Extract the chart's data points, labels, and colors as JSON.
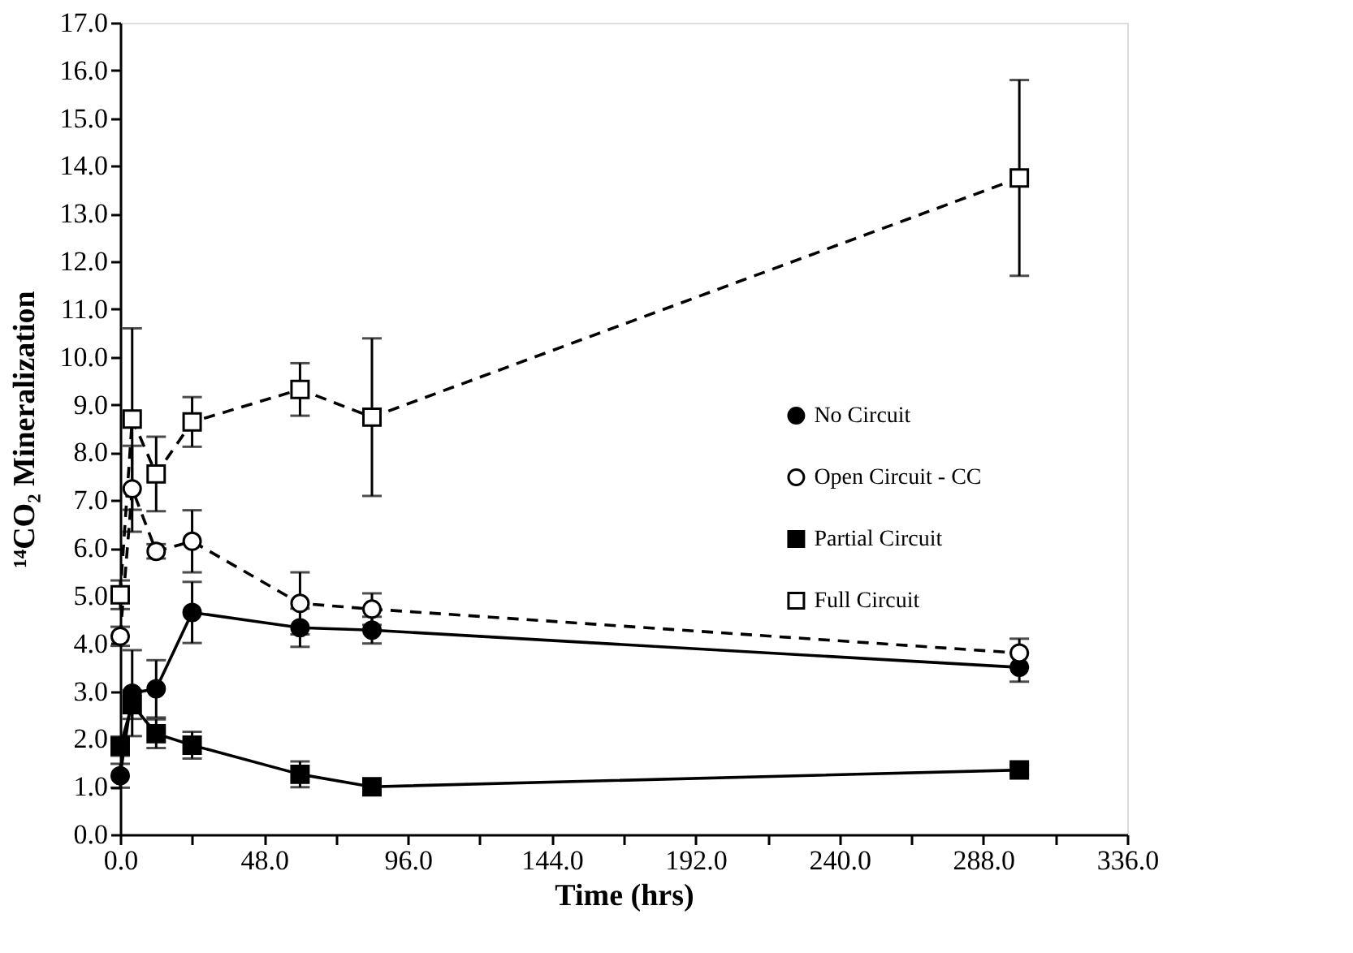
{
  "chart_data": {
    "type": "line",
    "xlabel": "Time (hrs)",
    "ylabel": "¹⁴CO₂ Mineralization",
    "xlim": [
      0,
      336
    ],
    "ylim": [
      0,
      17
    ],
    "xticks": [
      {
        "value": 0,
        "label": "0.0"
      },
      {
        "value": 24,
        "label": null
      },
      {
        "value": 48,
        "label": "48.0"
      },
      {
        "value": 72,
        "label": null
      },
      {
        "value": 96,
        "label": "96.0"
      },
      {
        "value": 120,
        "label": null
      },
      {
        "value": 144,
        "label": "144.0"
      },
      {
        "value": 168,
        "label": null
      },
      {
        "value": 192,
        "label": "192.0"
      },
      {
        "value": 216,
        "label": null
      },
      {
        "value": 240,
        "label": "240.0"
      },
      {
        "value": 264,
        "label": null
      },
      {
        "value": 288,
        "label": "288.0"
      },
      {
        "value": 312,
        "label": null
      },
      {
        "value": 336,
        "label": "336.0"
      }
    ],
    "yticks": [
      {
        "value": 0,
        "label": "0.0"
      },
      {
        "value": 1,
        "label": "1.0"
      },
      {
        "value": 2,
        "label": "2.0"
      },
      {
        "value": 3,
        "label": "3.0"
      },
      {
        "value": 4,
        "label": "4.0"
      },
      {
        "value": 5,
        "label": "5.0"
      },
      {
        "value": 6,
        "label": "6.0"
      },
      {
        "value": 7,
        "label": "7.0"
      },
      {
        "value": 8,
        "label": "8.0"
      },
      {
        "value": 9,
        "label": "9.0"
      },
      {
        "value": 10,
        "label": "10.0"
      },
      {
        "value": 11,
        "label": "11.0"
      },
      {
        "value": 12,
        "label": "12.0"
      },
      {
        "value": 13,
        "label": "13.0"
      },
      {
        "value": 14,
        "label": "14.0"
      },
      {
        "value": 15,
        "label": "15.0"
      },
      {
        "value": 16,
        "label": "16.0"
      },
      {
        "value": 17,
        "label": "17.0"
      }
    ],
    "x": [
      0,
      4,
      12,
      24,
      60,
      84,
      300
    ],
    "grid": false,
    "legend": "right",
    "series": [
      {
        "name": "No Circuit",
        "color": "#000000",
        "marker": "circle",
        "line_style": "solid",
        "values": [
          1.23,
          2.96,
          3.05,
          4.65,
          4.33,
          4.28,
          3.5
        ],
        "errors": [
          0.25,
          0.9,
          0.6,
          0.64,
          0.4,
          0.28,
          0.3
        ]
      },
      {
        "name": "Open Circuit - CC",
        "color": "#000000",
        "marker": "circle",
        "line_style": "dashed",
        "values": [
          4.15,
          7.24,
          5.93,
          6.14,
          4.84,
          4.72,
          3.8
        ],
        "errors": [
          0.2,
          0.9,
          0.15,
          0.65,
          0.65,
          0.33,
          0.3
        ]
      },
      {
        "name": "Partial Circuit",
        "color": "#000000",
        "marker": "square",
        "line_style": "solid",
        "values": [
          1.85,
          2.72,
          2.11,
          1.87,
          1.26,
          1.0,
          1.35
        ],
        "errors": [
          0.2,
          0.3,
          0.3,
          0.28,
          0.27,
          0.1,
          0.1
        ]
      },
      {
        "name": "Full Circuit",
        "color": "#000000",
        "marker": "square",
        "line_style": "dashed",
        "values": [
          5.02,
          8.7,
          7.55,
          8.64,
          9.32,
          8.74,
          13.75
        ],
        "errors": [
          0.3,
          1.9,
          0.78,
          0.52,
          0.55,
          1.65,
          2.05
        ]
      }
    ]
  }
}
